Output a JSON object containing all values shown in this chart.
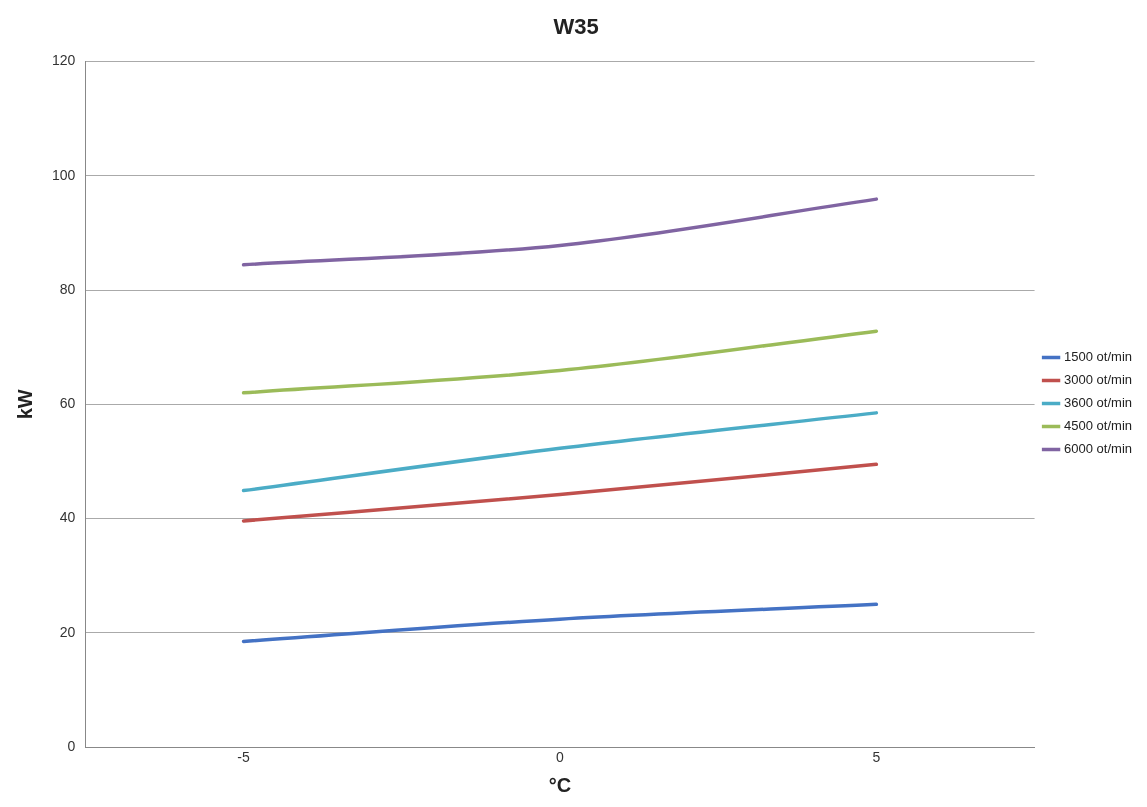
{
  "chart_data": {
    "type": "line",
    "title": "W35",
    "xlabel": "°C",
    "ylabel": "kW",
    "x": [
      -5,
      0,
      5
    ],
    "series": [
      {
        "name": "1500 ot/min",
        "color": "#4472c4",
        "values": [
          18.5,
          22.4,
          25.0
        ]
      },
      {
        "name": "3000 ot/min",
        "color": "#c0504d",
        "values": [
          39.6,
          44.2,
          49.5
        ]
      },
      {
        "name": "3600 ot/min",
        "color": "#4bacc6",
        "values": [
          44.9,
          52.3,
          58.5
        ]
      },
      {
        "name": "4500 ot/min",
        "color": "#9bbb59",
        "values": [
          62.0,
          65.9,
          72.8
        ]
      },
      {
        "name": "6000 ot/min",
        "color": "#8064a2",
        "values": [
          84.4,
          87.8,
          95.9
        ]
      }
    ],
    "xlim": [
      -7.5,
      7.5
    ],
    "xticks": [
      -5,
      0,
      5
    ],
    "ylim": [
      0,
      120
    ],
    "yticks": [
      0,
      20,
      40,
      60,
      80,
      100,
      120
    ],
    "grid": "y",
    "legend": "right",
    "marker": "none",
    "line_style": "solid"
  }
}
